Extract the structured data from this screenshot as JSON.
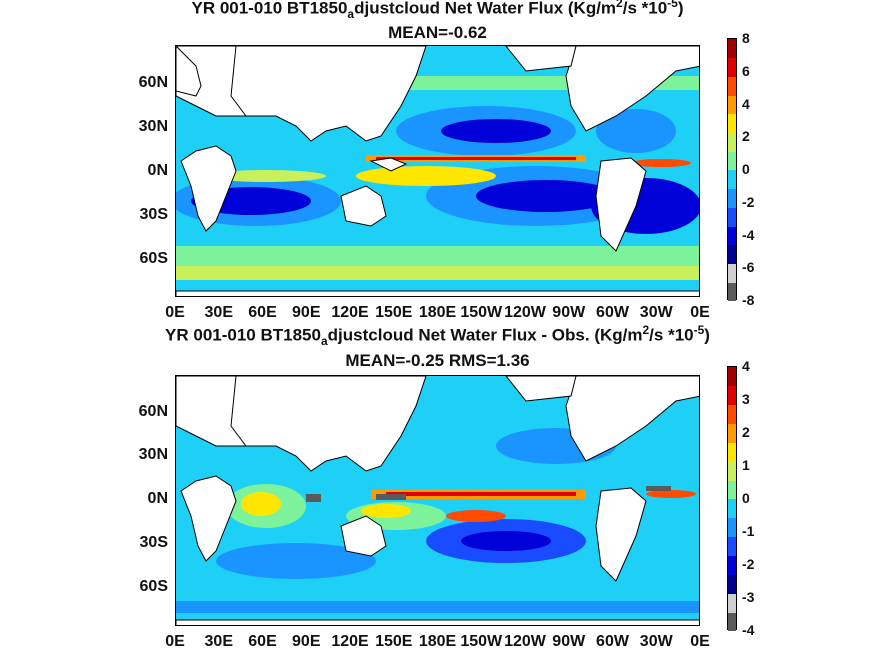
{
  "panels": [
    {
      "title_main": "YR 001-010 BT1850",
      "title_sub": "a",
      "title_rest": "djustcloud  Net Water Flux (Kg/m",
      "title_sup1": "2",
      "title_rest2": "/s *10",
      "title_sup2": "-5",
      "title_end": ")",
      "subtitle": "MEAN=-0.62",
      "colorbar_ticks": [
        "8",
        "6",
        "4",
        "2",
        "0",
        "-2",
        "-4",
        "-6",
        "-8"
      ]
    },
    {
      "title_main": "YR 001-010 BT1850",
      "title_sub": "a",
      "title_rest": "djustcloud  Net Water Flux - Obs. (Kg/m",
      "title_sup1": "2",
      "title_rest2": "/s *10",
      "title_sup2": "-5",
      "title_end": ")",
      "subtitle": "MEAN=-0.25 RMS=1.36",
      "colorbar_ticks": [
        "4",
        "3",
        "2",
        "1",
        "0",
        "-1",
        "-2",
        "-3",
        "-4"
      ]
    }
  ],
  "lat_labels": [
    "60N",
    "30N",
    "0N",
    "30S",
    "60S"
  ],
  "lon_labels": [
    "0E",
    "30E",
    "60E",
    "90E",
    "120E",
    "150E",
    "180E",
    "150W",
    "120W",
    "90W",
    "60W",
    "30W",
    "0E"
  ],
  "colormap": [
    "#5a5a5a",
    "#cfcfcf",
    "#00008f",
    "#0000d8",
    "#1a4cff",
    "#1a95ff",
    "#1fd0f6",
    "#7cf29a",
    "#c8f05a",
    "#ffe600",
    "#ff9a00",
    "#ff4a00",
    "#e00000",
    "#a00000"
  ],
  "chart_data": [
    {
      "type": "heatmap",
      "title": "YR 001-010 BT1850adjustcloud  Net Water Flux (Kg/m2/s *10-5)",
      "subtitle": "MEAN=-0.62",
      "xlabel": "",
      "ylabel": "",
      "x_ticks": [
        "0E",
        "30E",
        "60E",
        "90E",
        "120E",
        "150E",
        "180E",
        "150W",
        "120W",
        "90W",
        "60W",
        "30W",
        "0E"
      ],
      "y_ticks": [
        "60N",
        "30N",
        "0N",
        "30S",
        "60S"
      ],
      "colorbar_range": [
        -8,
        8
      ],
      "mean": -0.62
    },
    {
      "type": "heatmap",
      "title": "YR 001-010 BT1850adjustcloud  Net Water Flux - Obs. (Kg/m2/s *10-5)",
      "subtitle": "MEAN=-0.25 RMS=1.36",
      "xlabel": "",
      "ylabel": "",
      "x_ticks": [
        "0E",
        "30E",
        "60E",
        "90E",
        "120E",
        "150E",
        "180E",
        "150W",
        "120W",
        "90W",
        "60W",
        "30W",
        "0E"
      ],
      "y_ticks": [
        "60N",
        "30N",
        "0N",
        "30S",
        "60S"
      ],
      "colorbar_range": [
        -4,
        4
      ],
      "mean": -0.25,
      "rms": 1.36
    }
  ]
}
